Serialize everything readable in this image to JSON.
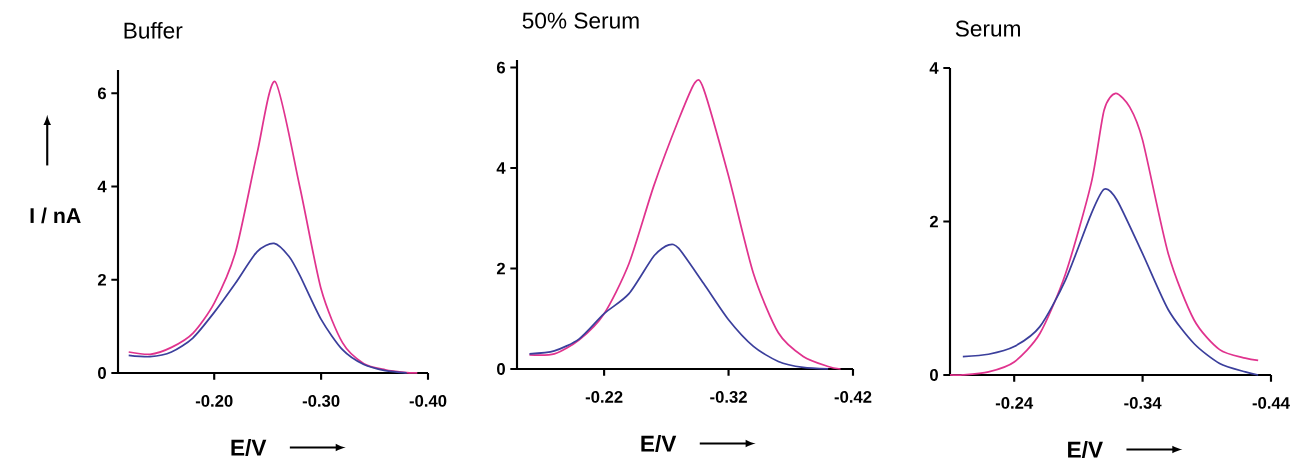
{
  "chart_data": [
    {
      "type": "line",
      "title": "Buffer",
      "xlabel": "E/V",
      "ylabel": "I / nA",
      "xlim": [
        -0.11,
        -0.4
      ],
      "ylim": [
        0,
        6.5
      ],
      "xticks": [
        {
          "value": -0.2,
          "label": "-0.20"
        },
        {
          "value": -0.3,
          "label": "-0.30"
        },
        {
          "value": -0.4,
          "label": "-0.40"
        }
      ],
      "yticks": [
        0,
        2,
        4,
        6
      ],
      "series": [
        {
          "color": "#e0338e",
          "x": [
            -0.12,
            -0.14,
            -0.16,
            -0.18,
            -0.2,
            -0.22,
            -0.24,
            -0.257,
            -0.28,
            -0.3,
            -0.32,
            -0.34,
            -0.36,
            -0.38,
            -0.39
          ],
          "values": [
            0.45,
            0.4,
            0.55,
            0.85,
            1.5,
            2.6,
            4.7,
            6.25,
            4.0,
            1.8,
            0.65,
            0.2,
            0.07,
            0.01,
            0
          ]
        },
        {
          "color": "#3b3f9c",
          "x": [
            -0.12,
            -0.14,
            -0.16,
            -0.18,
            -0.2,
            -0.22,
            -0.24,
            -0.256,
            -0.27,
            -0.28,
            -0.3,
            -0.32,
            -0.34,
            -0.36,
            -0.38
          ],
          "values": [
            0.38,
            0.35,
            0.45,
            0.75,
            1.3,
            1.93,
            2.6,
            2.78,
            2.5,
            2.1,
            1.15,
            0.5,
            0.18,
            0.05,
            0
          ]
        }
      ]
    },
    {
      "type": "line",
      "title": "50% Serum",
      "xlabel": "E/V",
      "xlim": [
        -0.15,
        -0.42
      ],
      "ylim": [
        0,
        6.15
      ],
      "xticks": [
        -0.22,
        -0.32,
        -0.42
      ],
      "yticks": [
        0,
        2,
        4,
        6
      ],
      "series": [
        {
          "color": "#e0338e",
          "x": [
            -0.16,
            -0.18,
            -0.2,
            -0.22,
            -0.24,
            -0.26,
            -0.28,
            -0.293,
            -0.3,
            -0.32,
            -0.34,
            -0.36,
            -0.38,
            -0.4,
            -0.41
          ],
          "values": [
            0.28,
            0.3,
            0.58,
            1.1,
            2.1,
            3.65,
            4.97,
            5.7,
            5.57,
            3.84,
            1.9,
            0.72,
            0.25,
            0.05,
            0
          ]
        },
        {
          "color": "#3b3f9c",
          "x": [
            -0.16,
            -0.18,
            -0.2,
            -0.22,
            -0.24,
            -0.26,
            -0.272,
            -0.28,
            -0.3,
            -0.32,
            -0.34,
            -0.36,
            -0.38,
            -0.4
          ],
          "values": [
            0.3,
            0.36,
            0.6,
            1.1,
            1.5,
            2.25,
            2.47,
            2.4,
            1.7,
            0.98,
            0.45,
            0.15,
            0.03,
            0
          ]
        }
      ]
    },
    {
      "type": "line",
      "title": "Serum",
      "xlabel": "E/V",
      "xlim": [
        -0.19,
        -0.44
      ],
      "ylim": [
        0,
        4
      ],
      "xticks": [
        -0.24,
        -0.34,
        -0.44
      ],
      "yticks": [
        0,
        2,
        4
      ],
      "series": [
        {
          "color": "#e0338e",
          "x": [
            -0.19,
            -0.2,
            -0.22,
            -0.24,
            -0.26,
            -0.28,
            -0.3,
            -0.31,
            -0.319,
            -0.33,
            -0.34,
            -0.36,
            -0.38,
            -0.4,
            -0.42,
            -0.43
          ],
          "values": [
            0,
            0,
            0.04,
            0.17,
            0.54,
            1.32,
            2.5,
            3.45,
            3.67,
            3.49,
            3.06,
            1.58,
            0.72,
            0.33,
            0.22,
            0.19
          ]
        },
        {
          "color": "#3b3f9c",
          "x": [
            -0.2,
            -0.22,
            -0.24,
            -0.26,
            -0.28,
            -0.3,
            -0.31,
            -0.32,
            -0.34,
            -0.36,
            -0.38,
            -0.4,
            -0.42,
            -0.43
          ],
          "values": [
            0.24,
            0.27,
            0.37,
            0.63,
            1.24,
            2.1,
            2.42,
            2.28,
            1.58,
            0.85,
            0.41,
            0.15,
            0.04,
            0
          ]
        }
      ]
    }
  ]
}
